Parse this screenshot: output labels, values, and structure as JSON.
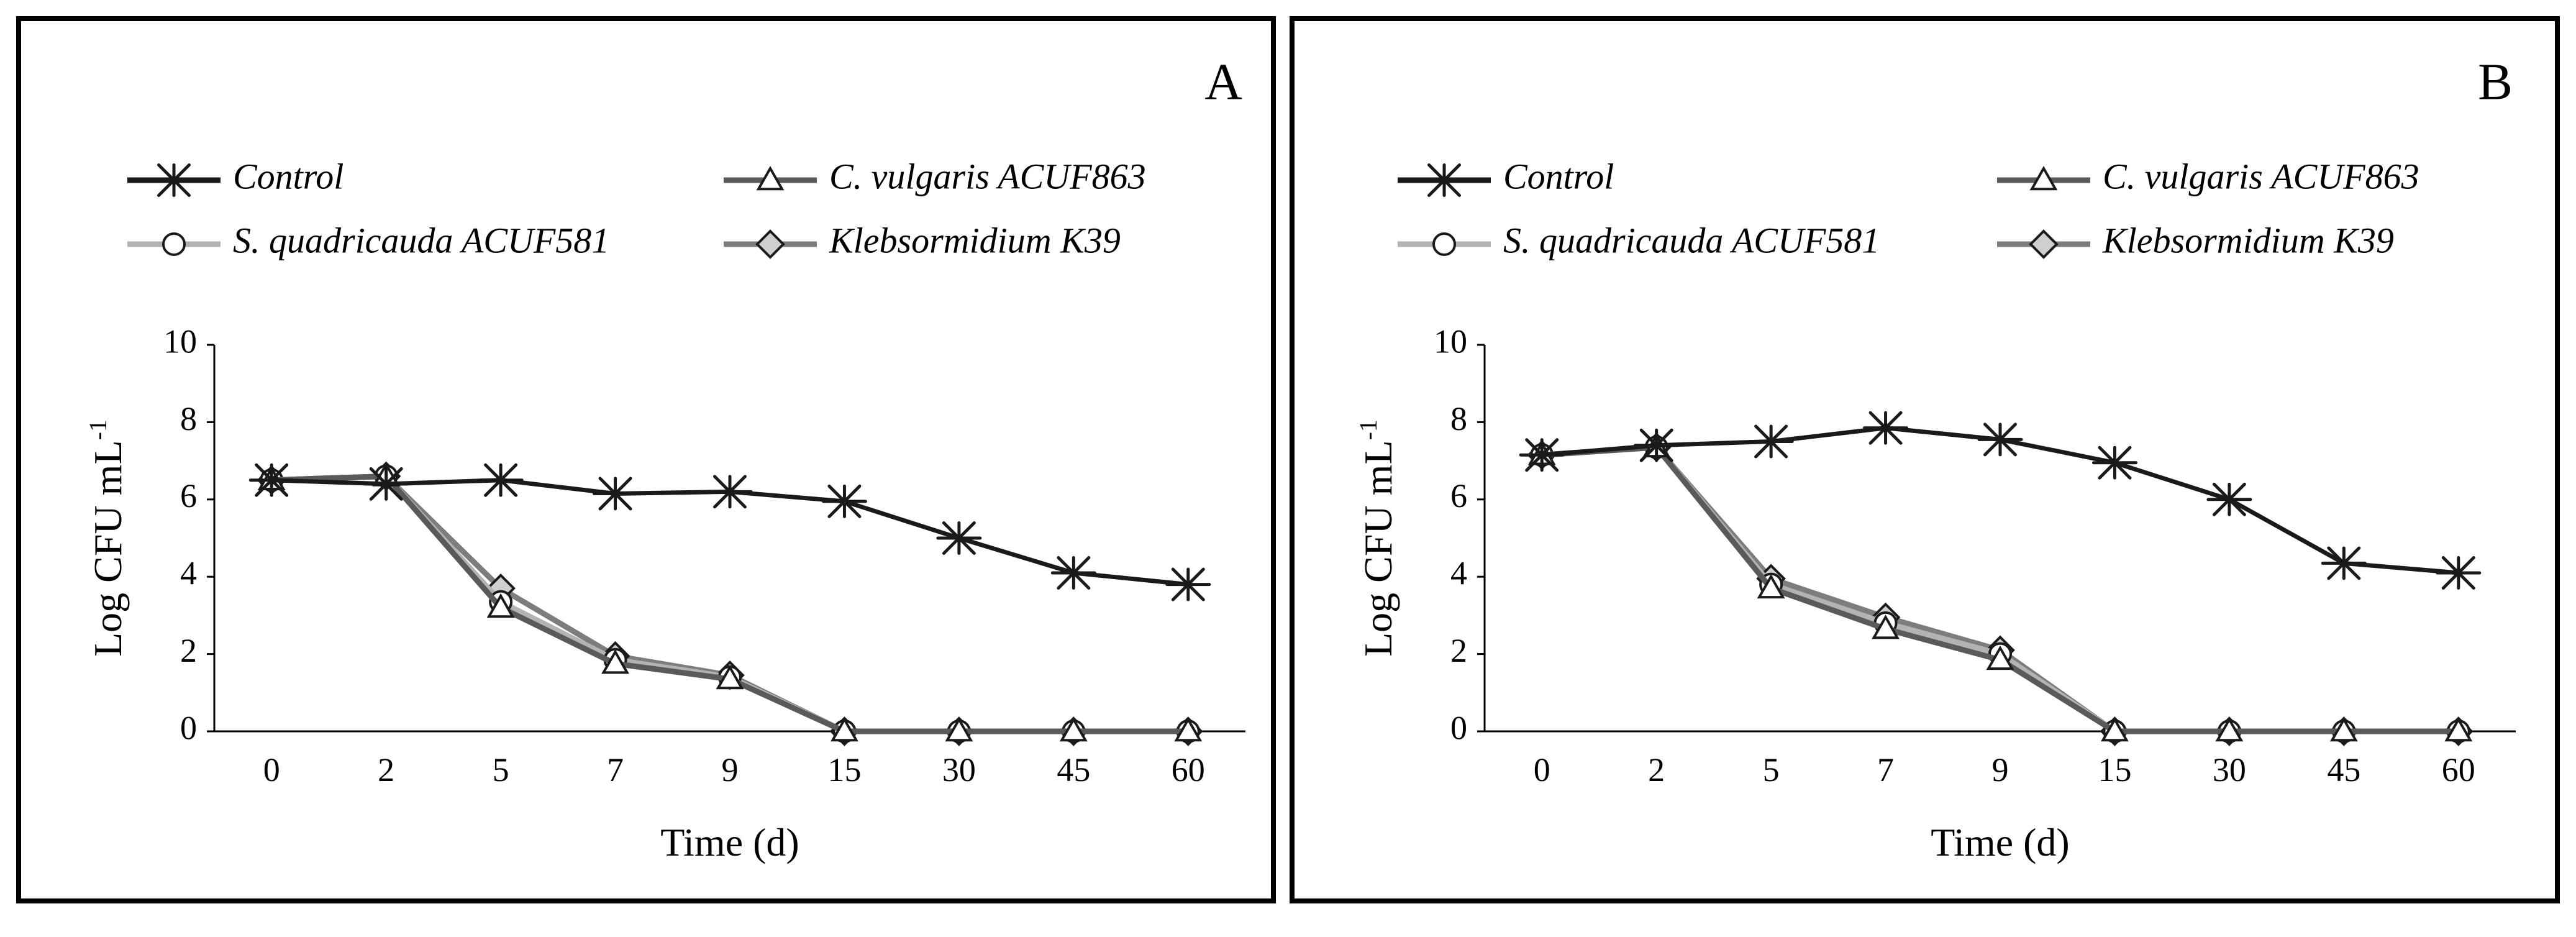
{
  "chart_data": [
    {
      "type": "line",
      "panel_label": "A",
      "categories": [
        "0",
        "2",
        "5",
        "7",
        "9",
        "15",
        "30",
        "45",
        "60"
      ],
      "xlabel": "Time (d)",
      "ylabel": "Log CFU mL",
      "ylabel_superscript": "-1",
      "ylim": [
        0,
        10
      ],
      "yticks": [
        "0",
        "2",
        "4",
        "6",
        "8",
        "10"
      ],
      "grid": false,
      "legend_position": "top",
      "series": [
        {
          "name": "Control",
          "marker": "asterisk",
          "color": "#1a1a1a",
          "values": [
            6.5,
            6.4,
            6.5,
            6.15,
            6.2,
            5.95,
            5.0,
            4.1,
            3.8
          ]
        },
        {
          "name": "C. vulgaris ACUF863",
          "marker": "triangle",
          "color": "#5a5a5a",
          "values": [
            6.5,
            6.6,
            3.2,
            1.75,
            1.35,
            0,
            0,
            0,
            0
          ]
        },
        {
          "name": "S. quadricauda ACUF581",
          "marker": "circle",
          "color": "#b3b3b3",
          "values": [
            6.5,
            6.6,
            3.35,
            1.85,
            1.4,
            0,
            0,
            0,
            0
          ]
        },
        {
          "name": "Klebsormidium K39",
          "marker": "diamond",
          "color": "#7d7d7d",
          "values": [
            6.5,
            6.6,
            3.7,
            1.95,
            1.45,
            0,
            0,
            0,
            0
          ]
        }
      ]
    },
    {
      "type": "line",
      "panel_label": "B",
      "categories": [
        "0",
        "2",
        "5",
        "7",
        "9",
        "15",
        "30",
        "45",
        "60"
      ],
      "xlabel": "Time (d)",
      "ylabel": "Log CFU mL",
      "ylabel_superscript": "-1",
      "ylim": [
        0,
        10
      ],
      "yticks": [
        "0",
        "2",
        "4",
        "6",
        "8",
        "10"
      ],
      "grid": false,
      "legend_position": "top",
      "series": [
        {
          "name": "Control",
          "marker": "asterisk",
          "color": "#1a1a1a",
          "values": [
            7.15,
            7.4,
            7.5,
            7.85,
            7.55,
            6.95,
            6.0,
            4.35,
            4.1
          ]
        },
        {
          "name": "C. vulgaris ACUF863",
          "marker": "triangle",
          "color": "#5a5a5a",
          "values": [
            7.15,
            7.35,
            3.7,
            2.65,
            1.85,
            0,
            0,
            0,
            0
          ]
        },
        {
          "name": "S. quadricauda ACUF581",
          "marker": "circle",
          "color": "#b3b3b3",
          "values": [
            7.15,
            7.35,
            3.8,
            2.8,
            2.0,
            0,
            0,
            0,
            0
          ]
        },
        {
          "name": "Klebsormidium K39",
          "marker": "diamond",
          "color": "#7d7d7d",
          "values": [
            7.15,
            7.35,
            3.95,
            2.95,
            2.1,
            0,
            0,
            0,
            0
          ]
        }
      ]
    }
  ]
}
